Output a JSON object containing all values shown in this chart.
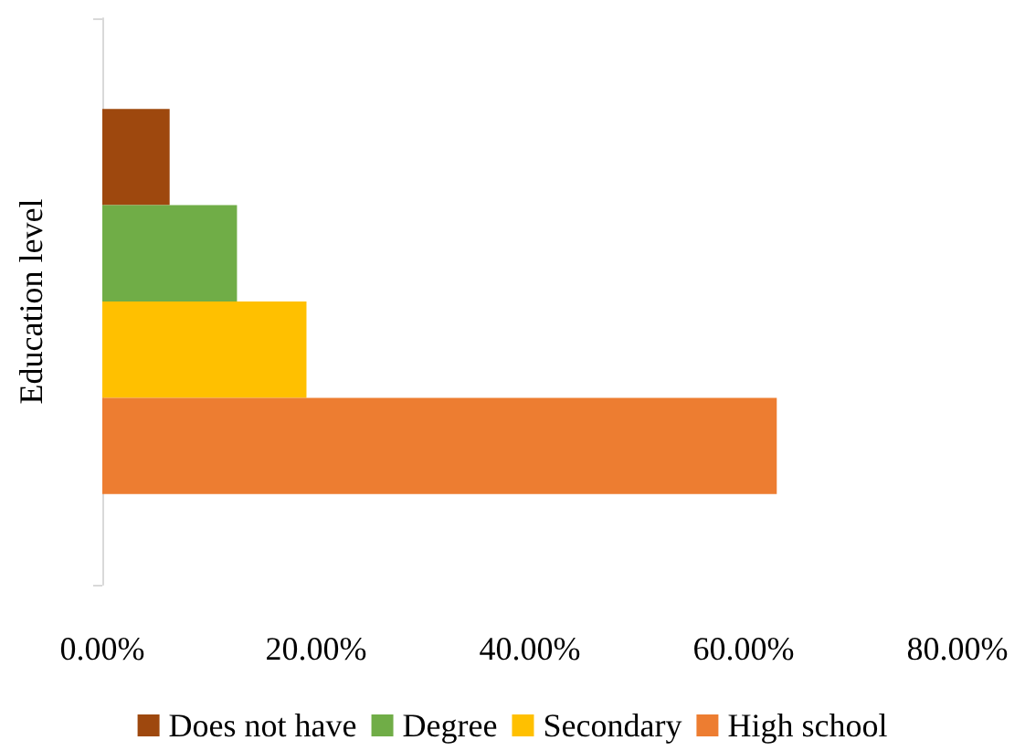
{
  "chart_data": {
    "type": "bar",
    "orientation": "horizontal",
    "ylabel": "Education level",
    "categories": [
      null
    ],
    "series": [
      {
        "name": "Does not have",
        "color": "#9e480e",
        "values": [
          6.3
        ]
      },
      {
        "name": "Degree",
        "color": "#70ad47",
        "values": [
          12.6
        ]
      },
      {
        "name": "Secondary",
        "color": "#ffc000",
        "values": [
          19.1
        ]
      },
      {
        "name": "High school",
        "color": "#ed7d31",
        "values": [
          63.1
        ]
      }
    ],
    "xlim": [
      0,
      80
    ],
    "xticks": [
      {
        "value": 0,
        "label": "0.00%"
      },
      {
        "value": 20,
        "label": "20.00%"
      },
      {
        "value": 40,
        "label": "40.00%"
      },
      {
        "value": 60,
        "label": "60.00%"
      },
      {
        "value": 80,
        "label": "80.00%"
      }
    ],
    "grid": false,
    "legend": "bottom"
  }
}
